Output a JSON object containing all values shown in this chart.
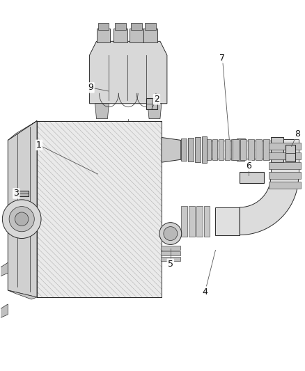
{
  "background_color": "#ffffff",
  "fig_width": 4.38,
  "fig_height": 5.33,
  "dpi": 100,
  "lc": "#2a2a2a",
  "lw": 0.7
}
